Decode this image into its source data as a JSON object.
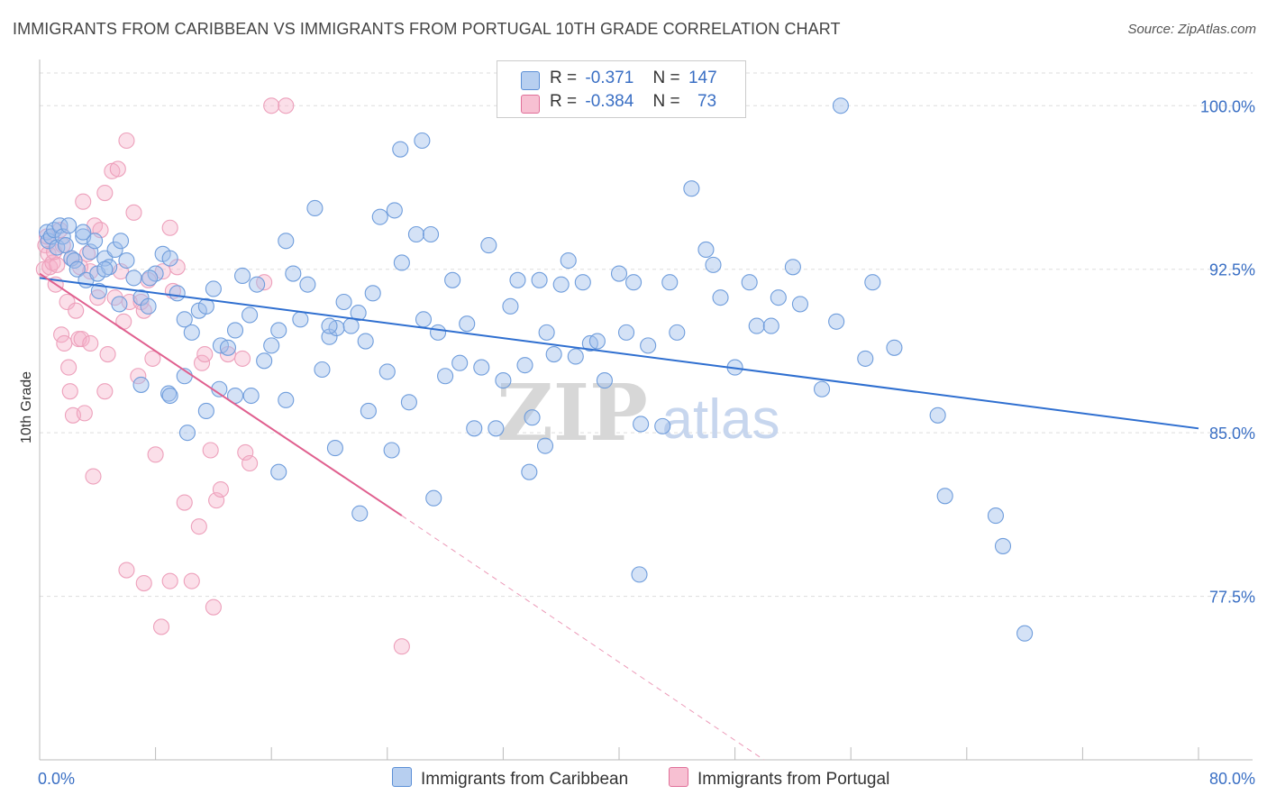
{
  "title": "IMMIGRANTS FROM CARIBBEAN VS IMMIGRANTS FROM PORTUGAL 10TH GRADE CORRELATION CHART",
  "source": "Source: ZipAtlas.com",
  "watermark": {
    "zip": "ZIP",
    "atlas": "atlas"
  },
  "legend": {
    "caribbean": {
      "r_label": "R =",
      "r_value": "-0.371",
      "n_label": "N =",
      "n_value": "147",
      "color": "#5b8fd6",
      "fill": "#b7cff0"
    },
    "portugal": {
      "r_label": "R =",
      "r_value": "-0.384",
      "n_label": "N =",
      "n_value": "73",
      "color": "#e07099",
      "fill": "#f7c0d2"
    }
  },
  "bottom_legend": {
    "caribbean": "Immigrants from Caribbean",
    "portugal": "Immigrants from Portugal"
  },
  "chart_data": {
    "type": "scatter",
    "title": "IMMIGRANTS FROM CARIBBEAN VS IMMIGRANTS FROM PORTUGAL 10TH GRADE CORRELATION CHART",
    "xlabel": "",
    "ylabel": "10th Grade",
    "xlim": [
      0,
      80
    ],
    "ylim": [
      70.0,
      101.5
    ],
    "x_tick_labels": [
      "0.0%",
      "80.0%"
    ],
    "y_ticks": [
      77.5,
      85.0,
      92.5,
      100.0
    ],
    "y_tick_labels": [
      "77.5%",
      "85.0%",
      "92.5%",
      "100.0%"
    ],
    "grid": true,
    "legend_placement": "top-center",
    "series": [
      {
        "name": "Immigrants from Caribbean",
        "color": "#5b8fd6",
        "trend": {
          "x": [
            0,
            80
          ],
          "y": [
            92.1,
            85.2
          ]
        },
        "points": [
          [
            0.5,
            94.2
          ],
          [
            0.6,
            93.8
          ],
          [
            0.8,
            94.0
          ],
          [
            1.0,
            94.3
          ],
          [
            1.2,
            93.5
          ],
          [
            1.4,
            94.5
          ],
          [
            1.6,
            94.0
          ],
          [
            1.8,
            93.6
          ],
          [
            2.0,
            94.5
          ],
          [
            2.2,
            93.0
          ],
          [
            2.4,
            92.9
          ],
          [
            2.6,
            92.5
          ],
          [
            3.0,
            94.0
          ],
          [
            3.2,
            92.0
          ],
          [
            3.5,
            93.3
          ],
          [
            3.8,
            93.8
          ],
          [
            4.0,
            92.3
          ],
          [
            4.5,
            93.0
          ],
          [
            4.8,
            92.6
          ],
          [
            5.2,
            93.4
          ],
          [
            5.6,
            93.8
          ],
          [
            6.0,
            92.9
          ],
          [
            6.5,
            92.1
          ],
          [
            7.0,
            91.2
          ],
          [
            7.5,
            90.8
          ],
          [
            8.0,
            92.3
          ],
          [
            8.5,
            93.2
          ],
          [
            9.0,
            93.0
          ],
          [
            9.5,
            91.4
          ],
          [
            10.0,
            90.2
          ],
          [
            10.5,
            89.6
          ],
          [
            11.0,
            90.6
          ],
          [
            11.5,
            90.8
          ],
          [
            12.0,
            91.6
          ],
          [
            12.5,
            89.0
          ],
          [
            13.0,
            88.9
          ],
          [
            13.5,
            89.7
          ],
          [
            14.0,
            92.2
          ],
          [
            14.5,
            90.4
          ],
          [
            15.0,
            91.8
          ],
          [
            15.5,
            88.3
          ],
          [
            16.0,
            89.0
          ],
          [
            16.5,
            89.7
          ],
          [
            17.0,
            93.8
          ],
          [
            17.5,
            92.3
          ],
          [
            18.0,
            90.2
          ],
          [
            18.5,
            91.8
          ],
          [
            19.0,
            95.3
          ],
          [
            19.5,
            87.9
          ],
          [
            20.0,
            89.4
          ],
          [
            20.5,
            89.8
          ],
          [
            21.0,
            91.0
          ],
          [
            21.5,
            89.9
          ],
          [
            22.0,
            90.5
          ],
          [
            22.5,
            89.2
          ],
          [
            23.0,
            91.4
          ],
          [
            23.5,
            94.9
          ],
          [
            24.0,
            87.8
          ],
          [
            24.5,
            95.2
          ],
          [
            25.0,
            92.8
          ],
          [
            25.5,
            86.4
          ],
          [
            26.0,
            94.1
          ],
          [
            26.5,
            90.2
          ],
          [
            27.0,
            94.1
          ],
          [
            27.5,
            89.6
          ],
          [
            28.0,
            87.6
          ],
          [
            28.5,
            92.0
          ],
          [
            29.0,
            88.2
          ],
          [
            29.5,
            90.0
          ],
          [
            30.0,
            85.2
          ],
          [
            30.5,
            88.0
          ],
          [
            31.0,
            93.6
          ],
          [
            31.5,
            85.2
          ],
          [
            32.0,
            87.4
          ],
          [
            32.5,
            90.8
          ],
          [
            33.0,
            92.0
          ],
          [
            33.5,
            88.1
          ],
          [
            34.0,
            85.7
          ],
          [
            34.5,
            92.0
          ],
          [
            35.0,
            89.6
          ],
          [
            35.5,
            88.6
          ],
          [
            36.0,
            91.8
          ],
          [
            36.5,
            92.9
          ],
          [
            37.0,
            88.5
          ],
          [
            37.5,
            91.9
          ],
          [
            38.0,
            89.1
          ],
          [
            38.5,
            89.2
          ],
          [
            39.0,
            87.4
          ],
          [
            40.0,
            92.3
          ],
          [
            40.5,
            89.6
          ],
          [
            41.0,
            91.9
          ],
          [
            41.5,
            85.4
          ],
          [
            42.0,
            89.0
          ],
          [
            43.0,
            85.3
          ],
          [
            43.5,
            91.9
          ],
          [
            44.0,
            89.6
          ],
          [
            45.0,
            96.2
          ],
          [
            46.0,
            93.4
          ],
          [
            46.5,
            92.7
          ],
          [
            47.0,
            91.2
          ],
          [
            48.0,
            88.0
          ],
          [
            49.0,
            91.9
          ],
          [
            49.5,
            89.9
          ],
          [
            50.5,
            89.9
          ],
          [
            51.0,
            91.2
          ],
          [
            52.0,
            92.6
          ],
          [
            52.5,
            90.9
          ],
          [
            54.0,
            87.0
          ],
          [
            55.0,
            90.1
          ],
          [
            57.0,
            88.4
          ],
          [
            57.5,
            91.9
          ],
          [
            59.0,
            88.9
          ],
          [
            62.0,
            85.8
          ],
          [
            62.5,
            82.1
          ],
          [
            66.0,
            81.2
          ],
          [
            66.5,
            79.8
          ],
          [
            68.0,
            75.8
          ],
          [
            55.3,
            100.0
          ],
          [
            24.9,
            98.0
          ],
          [
            26.4,
            98.4
          ],
          [
            16.5,
            83.2
          ],
          [
            20.4,
            84.3
          ],
          [
            22.1,
            81.3
          ],
          [
            24.3,
            84.2
          ],
          [
            27.2,
            82.0
          ],
          [
            33.8,
            83.2
          ],
          [
            34.9,
            84.4
          ],
          [
            41.4,
            78.5
          ],
          [
            10.2,
            85.0
          ],
          [
            11.5,
            86.0
          ],
          [
            7.0,
            87.2
          ],
          [
            8.9,
            86.8
          ],
          [
            9.0,
            86.7
          ],
          [
            12.4,
            87.0
          ],
          [
            13.5,
            86.7
          ],
          [
            14.6,
            86.7
          ],
          [
            17.0,
            86.5
          ],
          [
            20.0,
            89.9
          ],
          [
            22.7,
            86.0
          ],
          [
            10.0,
            87.6
          ],
          [
            4.1,
            91.5
          ],
          [
            5.5,
            90.9
          ],
          [
            7.6,
            92.1
          ],
          [
            3.0,
            94.2
          ],
          [
            4.5,
            92.5
          ]
        ]
      },
      {
        "name": "Immigrants from Portugal",
        "color": "#e07099",
        "trend": {
          "x": [
            0,
            25
          ],
          "y": [
            92.3,
            81.2
          ],
          "dashed_x": [
            25,
            50
          ],
          "dashed_y": [
            81.2,
            70.0
          ]
        },
        "points": [
          [
            0.3,
            92.5
          ],
          [
            0.4,
            93.6
          ],
          [
            0.5,
            94.0
          ],
          [
            0.6,
            93.2
          ],
          [
            0.7,
            92.6
          ],
          [
            0.9,
            92.8
          ],
          [
            1.1,
            91.8
          ],
          [
            1.2,
            92.7
          ],
          [
            1.4,
            94.3
          ],
          [
            1.5,
            89.5
          ],
          [
            1.7,
            89.1
          ],
          [
            1.9,
            91.0
          ],
          [
            2.0,
            88.0
          ],
          [
            2.1,
            86.9
          ],
          [
            2.3,
            85.8
          ],
          [
            2.5,
            90.6
          ],
          [
            2.7,
            89.3
          ],
          [
            2.9,
            89.3
          ],
          [
            3.0,
            95.6
          ],
          [
            3.1,
            85.9
          ],
          [
            3.3,
            93.2
          ],
          [
            3.5,
            92.4
          ],
          [
            3.7,
            83.0
          ],
          [
            3.8,
            94.5
          ],
          [
            4.0,
            91.2
          ],
          [
            4.2,
            94.3
          ],
          [
            4.5,
            96.0
          ],
          [
            4.7,
            88.6
          ],
          [
            5.0,
            97.0
          ],
          [
            5.2,
            91.2
          ],
          [
            5.4,
            97.1
          ],
          [
            5.6,
            92.4
          ],
          [
            5.8,
            90.1
          ],
          [
            6.0,
            98.4
          ],
          [
            6.2,
            91.0
          ],
          [
            6.5,
            95.1
          ],
          [
            7.0,
            91.0
          ],
          [
            7.2,
            90.6
          ],
          [
            7.5,
            92.0
          ],
          [
            7.8,
            88.4
          ],
          [
            8.0,
            84.0
          ],
          [
            8.5,
            92.4
          ],
          [
            9.0,
            94.4
          ],
          [
            9.2,
            91.5
          ],
          [
            9.5,
            92.6
          ],
          [
            10.0,
            81.8
          ],
          [
            10.5,
            78.2
          ],
          [
            11.0,
            80.7
          ],
          [
            11.2,
            88.2
          ],
          [
            11.4,
            88.6
          ],
          [
            11.8,
            84.2
          ],
          [
            12.0,
            77.0
          ],
          [
            12.2,
            81.9
          ],
          [
            12.5,
            82.4
          ],
          [
            13.0,
            88.6
          ],
          [
            14.0,
            88.4
          ],
          [
            14.2,
            84.1
          ],
          [
            14.5,
            83.6
          ],
          [
            15.5,
            91.9
          ],
          [
            16.0,
            100.0
          ],
          [
            17.0,
            100.0
          ],
          [
            25.0,
            75.2
          ],
          [
            7.2,
            78.1
          ],
          [
            8.4,
            76.1
          ],
          [
            9.0,
            78.2
          ],
          [
            6.0,
            78.7
          ],
          [
            4.5,
            86.9
          ],
          [
            3.5,
            89.1
          ],
          [
            6.8,
            87.6
          ],
          [
            1.0,
            93.3
          ],
          [
            2.2,
            93.0
          ],
          [
            1.6,
            93.6
          ],
          [
            2.8,
            92.6
          ]
        ]
      }
    ]
  }
}
